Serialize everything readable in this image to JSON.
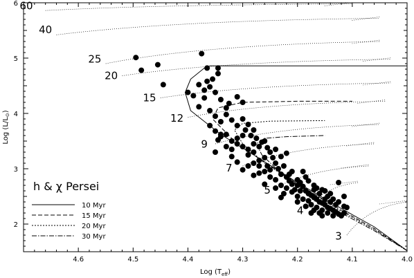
{
  "chart_data": {
    "type": "scatter",
    "title": "",
    "xlabel": "Log (T",
    "xlabel_sub": "eff",
    "xlabel_close": ")",
    "ylabel": "Log (L/L",
    "ylabel_sub": "⊙",
    "ylabel_close": ")",
    "xlim": [
      4.7,
      4.0
    ],
    "ylim": [
      1.5,
      6.0
    ],
    "x_ticks": [
      {
        "value": 4.6,
        "label": "4.6"
      },
      {
        "value": 4.5,
        "label": "4.5"
      },
      {
        "value": 4.4,
        "label": "4.4"
      },
      {
        "value": 4.3,
        "label": "4.3"
      },
      {
        "value": 4.2,
        "label": "4.2"
      },
      {
        "value": 4.1,
        "label": "4.1"
      },
      {
        "value": 4.0,
        "label": "4.0"
      }
    ],
    "y_ticks": [
      {
        "value": 2,
        "label": "2"
      },
      {
        "value": 3,
        "label": "3"
      },
      {
        "value": 4,
        "label": "4"
      },
      {
        "value": 5,
        "label": "5"
      },
      {
        "value": 6,
        "label": "6"
      }
    ],
    "legend": {
      "title": "h & χ Persei",
      "placement": "bottom-left",
      "entries": [
        {
          "label": "10 Myr",
          "dash": ""
        },
        {
          "label": "15 Myr",
          "dash": "6,3"
        },
        {
          "label": "20 Myr",
          "dash": "2,2"
        },
        {
          "label": "30 Myr",
          "dash": "7,2,1.5,2"
        }
      ]
    },
    "mass_tracks": [
      {
        "label": "60",
        "label_at": [
          4.695,
          5.88
        ],
        "start": [
          4.66,
          5.86
        ],
        "end": [
          4.1,
          5.98
        ]
      },
      {
        "label": "40",
        "label_at": [
          4.66,
          5.45
        ],
        "start": [
          4.64,
          5.42
        ],
        "end": [
          4.05,
          5.72
        ]
      },
      {
        "label": "25",
        "label_at": [
          4.57,
          4.92
        ],
        "start": [
          4.55,
          4.9
        ],
        "end": [
          4.05,
          5.3
        ]
      },
      {
        "label": "20",
        "label_at": [
          4.54,
          4.62
        ],
        "start": [
          4.52,
          4.68
        ],
        "end": [
          4.03,
          4.98
        ]
      },
      {
        "label": "15",
        "label_at": [
          4.47,
          4.22
        ],
        "start": [
          4.45,
          4.28
        ],
        "end": [
          4.03,
          4.55
        ]
      },
      {
        "label": "12",
        "label_at": [
          4.42,
          3.85
        ],
        "start": [
          4.4,
          3.93
        ],
        "end": [
          4.04,
          4.22
        ]
      },
      {
        "label": "9",
        "label_at": [
          4.37,
          3.38
        ],
        "start": [
          4.35,
          3.45
        ],
        "end": [
          4.05,
          3.8
        ]
      },
      {
        "label": "7",
        "label_at": [
          4.325,
          2.95
        ],
        "start": [
          4.3,
          3.05
        ],
        "end": [
          4.06,
          3.45
        ]
      },
      {
        "label": "5",
        "label_at": [
          4.255,
          2.55
        ],
        "start": [
          4.24,
          2.65
        ],
        "end": [
          4.07,
          3.05
        ]
      },
      {
        "label": "4",
        "label_at": [
          4.195,
          2.18
        ],
        "start": [
          4.18,
          2.3
        ],
        "end": [
          4.09,
          2.75
        ]
      },
      {
        "label": "3",
        "label_at": [
          4.125,
          1.72
        ],
        "start": [
          4.11,
          1.8
        ],
        "end": [
          4.0,
          2.4
        ]
      }
    ],
    "isochrones": [
      {
        "name": "10 Myr",
        "dash": "",
        "points": [
          [
            4.0,
            1.52
          ],
          [
            4.06,
            1.95
          ],
          [
            4.12,
            2.28
          ],
          [
            4.2,
            2.75
          ],
          [
            4.28,
            3.25
          ],
          [
            4.34,
            3.62
          ],
          [
            4.395,
            4.05
          ],
          [
            4.405,
            4.38
          ],
          [
            4.395,
            4.62
          ],
          [
            4.37,
            4.82
          ],
          [
            4.36,
            4.86
          ],
          [
            4.2,
            4.86
          ],
          [
            4.0,
            4.86
          ]
        ]
      },
      {
        "name": "15 Myr",
        "dash": "6,3",
        "points": [
          [
            4.0,
            1.52
          ],
          [
            4.06,
            1.92
          ],
          [
            4.12,
            2.25
          ],
          [
            4.2,
            2.73
          ],
          [
            4.27,
            3.18
          ],
          [
            4.32,
            3.55
          ],
          [
            4.355,
            3.9
          ],
          [
            4.345,
            4.1
          ],
          [
            4.3,
            4.2
          ],
          [
            4.2,
            4.22
          ],
          [
            4.1,
            4.22
          ]
        ]
      },
      {
        "name": "20 Myr",
        "dash": "2,2",
        "points": [
          [
            4.0,
            1.52
          ],
          [
            4.06,
            1.9
          ],
          [
            4.12,
            2.23
          ],
          [
            4.2,
            2.72
          ],
          [
            4.26,
            3.1
          ],
          [
            4.3,
            3.45
          ],
          [
            4.315,
            3.7
          ],
          [
            4.3,
            3.82
          ],
          [
            4.25,
            3.86
          ],
          [
            4.15,
            3.87
          ]
        ]
      },
      {
        "name": "30 Myr",
        "dash": "7,2,1.5,2",
        "points": [
          [
            4.0,
            1.52
          ],
          [
            4.06,
            1.88
          ],
          [
            4.12,
            2.2
          ],
          [
            4.18,
            2.55
          ],
          [
            4.23,
            2.92
          ],
          [
            4.265,
            3.25
          ],
          [
            4.275,
            3.45
          ],
          [
            4.26,
            3.55
          ],
          [
            4.22,
            3.58
          ],
          [
            4.15,
            3.6
          ]
        ]
      }
    ],
    "series": [
      {
        "type": "scatter",
        "points": [
          [
            4.495,
            5.01
          ],
          [
            4.485,
            4.78
          ],
          [
            4.455,
            4.88
          ],
          [
            4.445,
            4.52
          ],
          [
            4.375,
            5.08
          ],
          [
            4.365,
            4.82
          ],
          [
            4.345,
            4.82
          ],
          [
            4.345,
            4.72
          ],
          [
            4.355,
            4.62
          ],
          [
            4.365,
            4.58
          ],
          [
            4.38,
            4.52
          ],
          [
            4.4,
            4.38
          ],
          [
            4.39,
            4.32
          ],
          [
            4.37,
            4.42
          ],
          [
            4.36,
            4.48
          ],
          [
            4.35,
            4.38
          ],
          [
            4.34,
            4.25
          ],
          [
            4.33,
            4.1
          ],
          [
            4.325,
            4.18
          ],
          [
            4.31,
            4.3
          ],
          [
            4.3,
            4.2
          ],
          [
            4.37,
            4.28
          ],
          [
            4.38,
            4.12
          ],
          [
            4.36,
            4.05
          ],
          [
            4.35,
            3.95
          ],
          [
            4.34,
            3.85
          ],
          [
            4.33,
            3.98
          ],
          [
            4.32,
            3.88
          ],
          [
            4.31,
            3.78
          ],
          [
            4.3,
            3.9
          ],
          [
            4.29,
            3.8
          ],
          [
            4.28,
            3.7
          ],
          [
            4.36,
            3.78
          ],
          [
            4.35,
            3.68
          ],
          [
            4.34,
            3.58
          ],
          [
            4.33,
            3.62
          ],
          [
            4.32,
            3.5
          ],
          [
            4.31,
            3.45
          ],
          [
            4.3,
            3.4
          ],
          [
            4.29,
            3.35
          ],
          [
            4.28,
            3.3
          ],
          [
            4.27,
            3.4
          ],
          [
            4.26,
            3.5
          ],
          [
            4.25,
            3.3
          ],
          [
            4.26,
            3.2
          ],
          [
            4.27,
            3.15
          ],
          [
            4.28,
            3.1
          ],
          [
            4.29,
            3.05
          ],
          [
            4.3,
            2.98
          ],
          [
            4.31,
            3.12
          ],
          [
            4.32,
            3.22
          ],
          [
            4.35,
            3.3
          ],
          [
            4.345,
            3.52
          ],
          [
            4.34,
            3.62
          ],
          [
            4.295,
            3.7
          ],
          [
            4.285,
            3.6
          ],
          [
            4.275,
            3.55
          ],
          [
            4.265,
            3.48
          ],
          [
            4.255,
            3.38
          ],
          [
            4.245,
            3.2
          ],
          [
            4.24,
            3.1
          ],
          [
            4.235,
            3.0
          ],
          [
            4.25,
            2.98
          ],
          [
            4.26,
            2.95
          ],
          [
            4.27,
            2.92
          ],
          [
            4.28,
            2.88
          ],
          [
            4.25,
            2.85
          ],
          [
            4.24,
            2.8
          ],
          [
            4.23,
            2.9
          ],
          [
            4.22,
            2.85
          ],
          [
            4.215,
            2.78
          ],
          [
            4.21,
            2.72
          ],
          [
            4.2,
            2.7
          ],
          [
            4.195,
            2.75
          ],
          [
            4.19,
            2.68
          ],
          [
            4.185,
            2.6
          ],
          [
            4.18,
            2.55
          ],
          [
            4.175,
            2.52
          ],
          [
            4.17,
            2.48
          ],
          [
            4.165,
            2.45
          ],
          [
            4.16,
            2.4
          ],
          [
            4.155,
            2.38
          ],
          [
            4.15,
            2.35
          ],
          [
            4.145,
            2.3
          ],
          [
            4.14,
            2.28
          ],
          [
            4.135,
            2.25
          ],
          [
            4.13,
            2.22
          ],
          [
            4.125,
            2.18
          ],
          [
            4.12,
            2.15
          ],
          [
            4.115,
            2.2
          ],
          [
            4.11,
            2.3
          ],
          [
            4.115,
            2.5
          ],
          [
            4.125,
            2.75
          ],
          [
            4.15,
            2.6
          ],
          [
            4.16,
            2.55
          ],
          [
            4.17,
            2.62
          ],
          [
            4.18,
            2.42
          ],
          [
            4.19,
            2.45
          ],
          [
            4.2,
            2.5
          ],
          [
            4.21,
            2.58
          ],
          [
            4.22,
            2.65
          ],
          [
            4.23,
            2.7
          ],
          [
            4.175,
            2.35
          ],
          [
            4.165,
            2.3
          ],
          [
            4.155,
            2.25
          ],
          [
            4.145,
            2.2
          ],
          [
            4.135,
            2.15
          ],
          [
            4.16,
            2.2
          ],
          [
            4.17,
            2.25
          ],
          [
            4.15,
            2.45
          ],
          [
            4.14,
            2.4
          ],
          [
            4.13,
            2.35
          ],
          [
            4.17,
            2.7
          ],
          [
            4.18,
            2.78
          ],
          [
            4.2,
            2.8
          ],
          [
            4.215,
            2.9
          ],
          [
            4.225,
            3.05
          ],
          [
            4.23,
            3.22
          ],
          [
            4.24,
            3.35
          ],
          [
            4.22,
            3.28
          ],
          [
            4.28,
            3.45
          ],
          [
            4.3,
            3.6
          ],
          [
            4.31,
            3.55
          ],
          [
            4.33,
            3.4
          ],
          [
            4.32,
            3.35
          ],
          [
            4.29,
            3.25
          ],
          [
            4.27,
            3.05
          ],
          [
            4.255,
            3.05
          ],
          [
            4.21,
            2.95
          ],
          [
            4.185,
            2.85
          ],
          [
            4.195,
            2.6
          ],
          [
            4.205,
            2.62
          ],
          [
            4.225,
            2.55
          ],
          [
            4.24,
            2.65
          ],
          [
            4.26,
            2.72
          ],
          [
            4.145,
            2.5
          ],
          [
            4.135,
            2.45
          ],
          [
            4.125,
            2.4
          ],
          [
            4.115,
            2.32
          ],
          [
            4.155,
            2.62
          ],
          [
            4.165,
            2.65
          ],
          [
            4.19,
            2.95
          ],
          [
            4.23,
            2.48
          ],
          [
            4.2,
            2.4
          ],
          [
            4.185,
            2.32
          ],
          [
            4.155,
            2.15
          ],
          [
            4.175,
            2.2
          ],
          [
            4.14,
            2.55
          ]
        ]
      }
    ],
    "grid": false
  }
}
